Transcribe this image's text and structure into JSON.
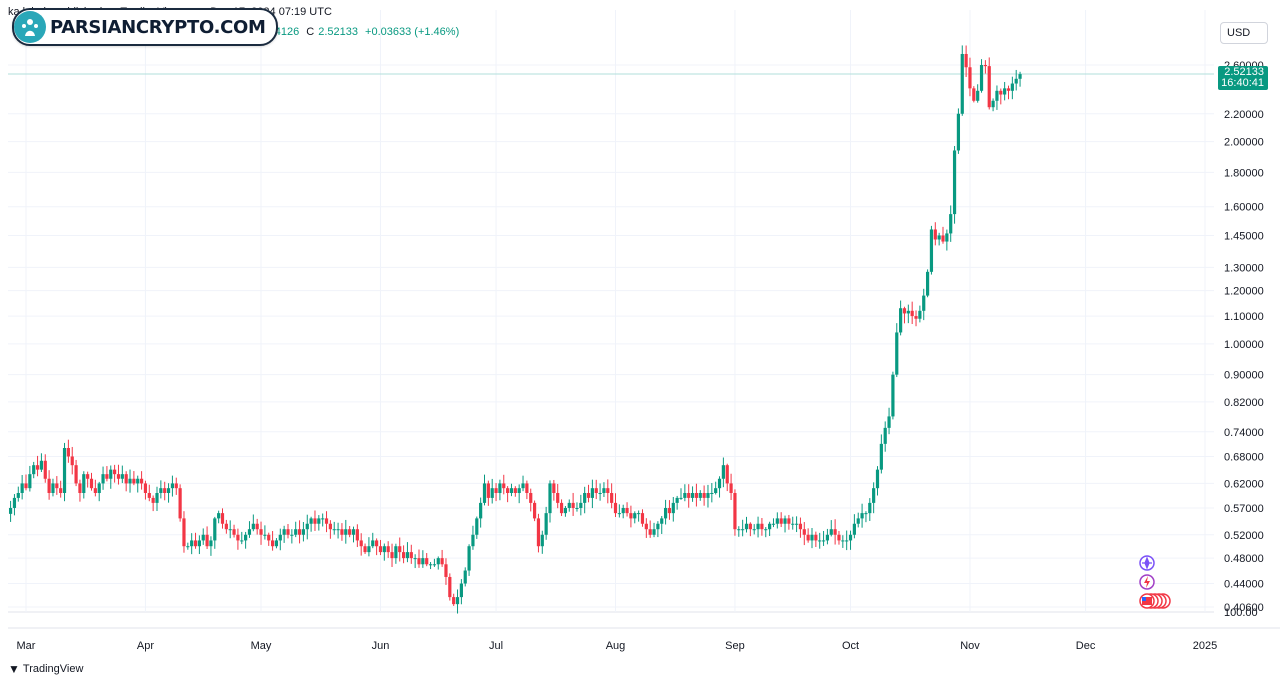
{
  "header": {
    "publisher_line": "ka       luhale published on TradingView.com, Dec 17, 2024 07:19 UTC",
    "ohlc": {
      "h_tail": "00",
      "l_label": "L",
      "l_value": "2.44126",
      "c_label": "C",
      "c_value": "2.52133",
      "change": "+0.03633 (+1.46%)"
    }
  },
  "logo": {
    "text": "PARSIANCRYPTO.COM",
    "icon": "parsian-logo-icon"
  },
  "currency": "USD",
  "last_price": {
    "value": "2.52133",
    "countdown": "16:40:41"
  },
  "footer": {
    "brand": "TradingView",
    "icon": "tradingview-logo-icon"
  },
  "colors": {
    "up": "#089981",
    "down": "#f23645",
    "grid": "#f0f3fa",
    "axis_text": "#131722",
    "price_line": "#b2dfdb"
  },
  "event_icons": [
    "crypto-event-icon",
    "lightning-event-icon",
    "us-flag-event-icon"
  ],
  "chart_data": {
    "type": "candlestick",
    "y_scale": "log",
    "y_ticks": [
      "2.60000",
      "2.20000",
      "2.00000",
      "1.80000",
      "1.60000",
      "1.45000",
      "1.30000",
      "1.20000",
      "1.10000",
      "1.00000",
      "0.90000",
      "0.82000",
      "0.74000",
      "0.68000",
      "0.62000",
      "0.57000",
      "0.52000",
      "0.48000",
      "0.44000",
      "0.40600"
    ],
    "y_bottom_label": "100.00",
    "x_ticks": [
      {
        "label": "Mar",
        "date": "2024-03-01"
      },
      {
        "label": "Apr",
        "date": "2024-04-01"
      },
      {
        "label": "May",
        "date": "2024-05-01"
      },
      {
        "label": "Jun",
        "date": "2024-06-01"
      },
      {
        "label": "Jul",
        "date": "2024-07-01"
      },
      {
        "label": "Aug",
        "date": "2024-08-01"
      },
      {
        "label": "Sep",
        "date": "2024-09-01"
      },
      {
        "label": "Oct",
        "date": "2024-10-01"
      },
      {
        "label": "Nov",
        "date": "2024-11-01"
      },
      {
        "label": "Dec",
        "date": "2024-12-01"
      },
      {
        "label": "2025",
        "date": "2025-01-01"
      }
    ],
    "start_date": "2024-02-26",
    "closes": [
      0.57,
      0.59,
      0.6,
      0.62,
      0.61,
      0.64,
      0.66,
      0.65,
      0.67,
      0.63,
      0.6,
      0.62,
      0.61,
      0.6,
      0.7,
      0.68,
      0.66,
      0.62,
      0.6,
      0.64,
      0.63,
      0.61,
      0.6,
      0.62,
      0.64,
      0.63,
      0.65,
      0.64,
      0.63,
      0.64,
      0.62,
      0.63,
      0.62,
      0.63,
      0.62,
      0.6,
      0.59,
      0.58,
      0.6,
      0.61,
      0.6,
      0.61,
      0.62,
      0.61,
      0.55,
      0.5,
      0.5,
      0.51,
      0.5,
      0.51,
      0.52,
      0.5,
      0.51,
      0.55,
      0.56,
      0.54,
      0.53,
      0.53,
      0.52,
      0.51,
      0.51,
      0.52,
      0.53,
      0.54,
      0.53,
      0.52,
      0.52,
      0.51,
      0.5,
      0.51,
      0.52,
      0.53,
      0.52,
      0.52,
      0.53,
      0.52,
      0.53,
      0.54,
      0.55,
      0.54,
      0.55,
      0.55,
      0.54,
      0.53,
      0.53,
      0.53,
      0.52,
      0.53,
      0.52,
      0.53,
      0.51,
      0.5,
      0.49,
      0.5,
      0.51,
      0.5,
      0.49,
      0.5,
      0.49,
      0.48,
      0.5,
      0.49,
      0.48,
      0.49,
      0.48,
      0.48,
      0.47,
      0.48,
      0.47,
      0.47,
      0.47,
      0.48,
      0.47,
      0.45,
      0.42,
      0.41,
      0.42,
      0.44,
      0.46,
      0.5,
      0.52,
      0.55,
      0.58,
      0.62,
      0.59,
      0.61,
      0.6,
      0.62,
      0.61,
      0.6,
      0.61,
      0.6,
      0.61,
      0.62,
      0.6,
      0.58,
      0.55,
      0.5,
      0.52,
      0.56,
      0.62,
      0.6,
      0.58,
      0.56,
      0.57,
      0.58,
      0.57,
      0.57,
      0.58,
      0.6,
      0.59,
      0.61,
      0.6,
      0.6,
      0.61,
      0.6,
      0.58,
      0.56,
      0.56,
      0.57,
      0.56,
      0.55,
      0.56,
      0.56,
      0.54,
      0.53,
      0.52,
      0.53,
      0.54,
      0.55,
      0.57,
      0.56,
      0.58,
      0.59,
      0.59,
      0.6,
      0.59,
      0.6,
      0.59,
      0.6,
      0.59,
      0.6,
      0.6,
      0.61,
      0.63,
      0.66,
      0.62,
      0.6,
      0.53,
      0.53,
      0.53,
      0.54,
      0.53,
      0.53,
      0.54,
      0.53,
      0.53,
      0.54,
      0.54,
      0.55,
      0.54,
      0.55,
      0.54,
      0.54,
      0.54,
      0.53,
      0.52,
      0.51,
      0.52,
      0.51,
      0.51,
      0.51,
      0.52,
      0.53,
      0.52,
      0.51,
      0.51,
      0.51,
      0.52,
      0.54,
      0.55,
      0.56,
      0.56,
      0.58,
      0.61,
      0.65,
      0.71,
      0.75,
      0.78,
      0.9,
      1.04,
      1.13,
      1.11,
      1.12,
      1.1,
      1.09,
      1.12,
      1.18,
      1.28,
      1.48,
      1.43,
      1.45,
      1.42,
      1.46,
      1.56,
      1.94,
      2.2,
      2.7,
      2.58,
      2.4,
      2.3,
      2.38,
      2.6,
      2.59,
      2.25,
      2.3,
      2.38,
      2.35,
      2.4,
      2.38,
      2.44,
      2.48,
      2.52
    ]
  }
}
